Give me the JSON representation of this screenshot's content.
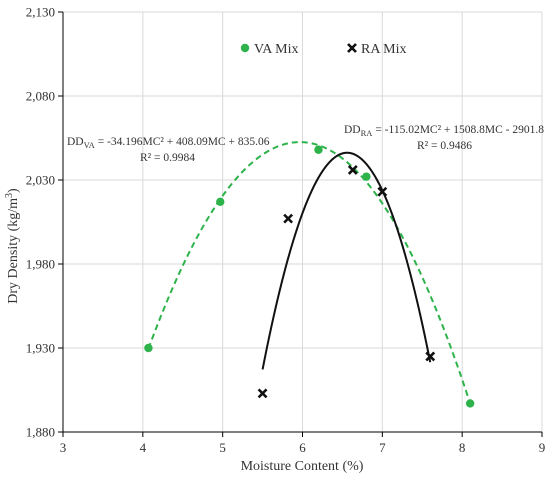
{
  "chart_data": {
    "type": "scatter",
    "xlabel": "Moisture Content (%)",
    "ylabel": "Dry Density (kg/m",
    "ylabel_sup": "3",
    "ylabel_end": ")",
    "xlim": [
      3,
      9
    ],
    "ylim": [
      1880,
      2130
    ],
    "x_ticks": [
      3,
      4,
      5,
      6,
      7,
      8,
      9
    ],
    "y_ticks": [
      1880,
      1930,
      1980,
      2030,
      2080,
      2130
    ],
    "y_tick_labels": [
      "1,880",
      "1,930",
      "1,980",
      "2,030",
      "2,080",
      "2,130"
    ],
    "grid": true,
    "legend_position": "top",
    "series": [
      {
        "name": "VA Mix",
        "marker": "circle",
        "color": "#2db34a",
        "points": [
          [
            4.07,
            1930
          ],
          [
            4.97,
            2017
          ],
          [
            6.2,
            2048
          ],
          [
            6.8,
            2032
          ],
          [
            8.1,
            1897
          ]
        ],
        "fit": {
          "a": -34.196,
          "b": 408.09,
          "c": 835.06,
          "x_range": [
            4.07,
            8.1
          ],
          "style": "dashed",
          "eq_prefix": "DD",
          "eq_sub": "VA",
          "eq_body": " = -34.196MC² + 408.09MC + 835.06",
          "r2": "R² = 0.9984"
        }
      },
      {
        "name": "RA Mix",
        "marker": "x",
        "color": "#111111",
        "points": [
          [
            5.5,
            1903
          ],
          [
            5.82,
            2007
          ],
          [
            6.63,
            2036
          ],
          [
            7.0,
            2023
          ],
          [
            7.6,
            1925
          ]
        ],
        "fit": {
          "a": -115.02,
          "b": 1508.8,
          "c": -2901.8,
          "x_range": [
            5.5,
            7.6
          ],
          "style": "solid",
          "eq_prefix": "DD",
          "eq_sub": "RA",
          "eq_body": " = -115.02MC² + 1508.8MC - 2901.8",
          "r2": "R² = 0.9486"
        }
      }
    ]
  }
}
